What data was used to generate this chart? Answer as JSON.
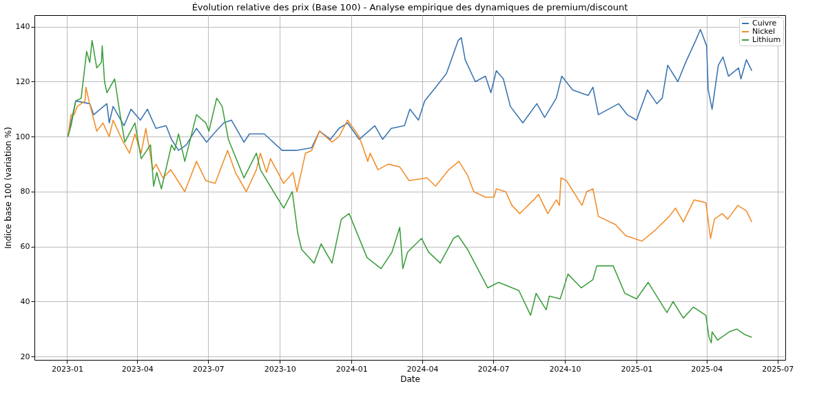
{
  "chart_data": {
    "type": "line",
    "title": "Évolution relative des prix (Base 100) - Analyse empirique des dynamiques de premium/discount",
    "xlabel": "Date",
    "ylabel": "Indice base 100 (variation %)",
    "xlim": [
      "2022-11-20",
      "2025-07-11"
    ],
    "ylim": [
      18.8,
      144.2
    ],
    "xticks": [
      {
        "value": "2023-01",
        "label": "2023-01"
      },
      {
        "value": "2023-04",
        "label": "2023-04"
      },
      {
        "value": "2023-07",
        "label": "2023-07"
      },
      {
        "value": "2023-10",
        "label": "2023-10"
      },
      {
        "value": "2024-01",
        "label": "2024-01"
      },
      {
        "value": "2024-04",
        "label": "2024-04"
      },
      {
        "value": "2024-07",
        "label": "2024-07"
      },
      {
        "value": "2024-10",
        "label": "2024-10"
      },
      {
        "value": "2025-01",
        "label": "2025-01"
      },
      {
        "value": "2025-04",
        "label": "2025-04"
      },
      {
        "value": "2025-07",
        "label": "2025-07"
      }
    ],
    "yticks": [
      20,
      40,
      60,
      80,
      100,
      120,
      140
    ],
    "grid": true,
    "legend": "top right",
    "series": [
      {
        "name": "Cuivre",
        "color": "#3a75b0",
        "x": [
          "2023-01-02",
          "2023-01-12",
          "2023-01-30",
          "2023-02-04",
          "2023-02-21",
          "2023-02-24",
          "2023-03-01",
          "2023-03-15",
          "2023-03-24",
          "2023-04-05",
          "2023-04-14",
          "2023-04-25",
          "2023-05-08",
          "2023-05-15",
          "2023-05-24",
          "2023-06-03",
          "2023-06-16",
          "2023-06-29",
          "2023-07-08",
          "2023-07-21",
          "2023-07-31",
          "2023-08-16",
          "2023-08-23",
          "2023-09-11",
          "2023-10-04",
          "2023-10-22",
          "2023-11-11",
          "2023-11-21",
          "2023-12-05",
          "2023-12-16",
          "2023-12-27",
          "2024-01-11",
          "2024-01-31",
          "2024-02-10",
          "2024-02-21",
          "2024-03-09",
          "2024-03-16",
          "2024-03-27",
          "2024-04-04",
          "2024-04-21",
          "2024-05-02",
          "2024-05-17",
          "2024-05-21",
          "2024-05-26",
          "2024-06-08",
          "2024-06-21",
          "2024-06-28",
          "2024-07-05",
          "2024-07-14",
          "2024-07-23",
          "2024-08-08",
          "2024-08-26",
          "2024-09-05",
          "2024-09-20",
          "2024-09-27",
          "2024-10-11",
          "2024-10-31",
          "2024-11-06",
          "2024-11-13",
          "2024-12-09",
          "2024-12-20",
          "2025-01-01",
          "2025-01-15",
          "2025-01-27",
          "2025-02-03",
          "2025-02-10",
          "2025-02-23",
          "2025-03-05",
          "2025-03-18",
          "2025-03-24",
          "2025-04-01",
          "2025-04-03",
          "2025-04-08",
          "2025-04-16",
          "2025-04-22",
          "2025-04-29",
          "2025-05-12",
          "2025-05-15",
          "2025-05-22",
          "2025-05-29"
        ],
        "values": [
          100,
          113,
          112,
          108,
          112,
          105,
          111,
          104,
          110,
          106,
          110,
          103,
          104,
          99,
          95,
          97,
          103,
          98,
          101,
          105,
          106,
          98,
          101,
          101,
          95,
          95,
          96,
          102,
          99,
          103,
          105,
          99,
          104,
          99,
          103,
          104,
          110,
          106,
          113,
          119,
          123,
          135,
          136,
          128,
          120,
          122,
          116,
          124,
          121,
          111,
          105,
          112,
          107,
          114,
          122,
          117,
          115,
          118,
          108,
          112,
          108,
          106,
          117,
          112,
          114,
          126,
          120,
          127,
          135,
          139,
          133,
          117,
          110,
          126,
          129,
          122,
          125,
          121,
          128,
          124
        ]
      },
      {
        "name": "Nickel",
        "color": "#f28e2b",
        "x": [
          "2023-01-02",
          "2023-01-06",
          "2023-01-10",
          "2023-01-14",
          "2023-01-24",
          "2023-01-25",
          "2023-01-29",
          "2023-02-08",
          "2023-02-16",
          "2023-02-24",
          "2023-03-01",
          "2023-03-14",
          "2023-03-22",
          "2023-03-29",
          "2023-04-06",
          "2023-04-12",
          "2023-04-21",
          "2023-04-25",
          "2023-05-04",
          "2023-05-14",
          "2023-05-23",
          "2023-06-01",
          "2023-06-16",
          "2023-06-28",
          "2023-07-10",
          "2023-07-26",
          "2023-08-05",
          "2023-08-19",
          "2023-09-01",
          "2023-09-06",
          "2023-09-14",
          "2023-09-19",
          "2023-10-06",
          "2023-10-18",
          "2023-10-23",
          "2023-11-03",
          "2023-11-11",
          "2023-11-21",
          "2023-12-07",
          "2023-12-16",
          "2023-12-27",
          "2024-01-11",
          "2024-01-22",
          "2024-01-25",
          "2024-02-04",
          "2024-02-17",
          "2024-03-03",
          "2024-03-15",
          "2024-04-07",
          "2024-04-18",
          "2024-05-05",
          "2024-05-18",
          "2024-05-29",
          "2024-06-06",
          "2024-06-21",
          "2024-07-02",
          "2024-07-05",
          "2024-07-17",
          "2024-07-25",
          "2024-08-04",
          "2024-08-22",
          "2024-08-28",
          "2024-09-09",
          "2024-09-20",
          "2024-09-24",
          "2024-09-26",
          "2024-10-03",
          "2024-10-23",
          "2024-10-29",
          "2024-11-06",
          "2024-11-13",
          "2024-12-05",
          "2024-12-18",
          "2025-01-08",
          "2025-01-25",
          "2025-02-12",
          "2025-02-20",
          "2025-03-02",
          "2025-03-16",
          "2025-03-31",
          "2025-04-06",
          "2025-04-11",
          "2025-04-21",
          "2025-04-28",
          "2025-05-11",
          "2025-05-22",
          "2025-05-29"
        ],
        "values": [
          100,
          108,
          108,
          111,
          113,
          118,
          113,
          102,
          105,
          100,
          106,
          98,
          94,
          101,
          94,
          103,
          88,
          90,
          85,
          88,
          84,
          80,
          91,
          84,
          83,
          95,
          87,
          80,
          88,
          94,
          87,
          92,
          83,
          87,
          80,
          94,
          95,
          102,
          98,
          100,
          106,
          100,
          91,
          94,
          88,
          90,
          89,
          84,
          85,
          82,
          88,
          91,
          86,
          80,
          78,
          78,
          81,
          80,
          75,
          72,
          77,
          79,
          72,
          77,
          75,
          85,
          84,
          75,
          80,
          81,
          71,
          68,
          64,
          62,
          66,
          71,
          74,
          69,
          77,
          76,
          63,
          70,
          72,
          70,
          75,
          73,
          69
        ]
      },
      {
        "name": "Lithium",
        "color": "#3f9f3f",
        "x": [
          "2023-01-02",
          "2023-01-06",
          "2023-01-12",
          "2023-01-19",
          "2023-01-26",
          "2023-01-30",
          "2023-02-02",
          "2023-02-08",
          "2023-02-14",
          "2023-02-15",
          "2023-02-18",
          "2023-02-21",
          "2023-03-03",
          "2023-03-10",
          "2023-03-16",
          "2023-03-29",
          "2023-04-06",
          "2023-04-18",
          "2023-04-22",
          "2023-04-26",
          "2023-05-02",
          "2023-05-15",
          "2023-05-19",
          "2023-05-24",
          "2023-06-01",
          "2023-06-16",
          "2023-06-28",
          "2023-07-02",
          "2023-07-12",
          "2023-07-19",
          "2023-07-27",
          "2023-08-16",
          "2023-09-01",
          "2023-09-06",
          "2023-09-23",
          "2023-10-06",
          "2023-10-17",
          "2023-10-24",
          "2023-10-29",
          "2023-11-14",
          "2023-11-23",
          "2023-12-07",
          "2023-12-19",
          "2023-12-29",
          "2024-01-21",
          "2024-02-08",
          "2024-02-22",
          "2024-03-03",
          "2024-03-07",
          "2024-03-13",
          "2024-03-31",
          "2024-04-09",
          "2024-04-24",
          "2024-05-11",
          "2024-05-17",
          "2024-05-29",
          "2024-06-24",
          "2024-07-08",
          "2024-08-03",
          "2024-08-18",
          "2024-08-25",
          "2024-09-07",
          "2024-09-11",
          "2024-09-25",
          "2024-10-05",
          "2024-10-22",
          "2024-11-06",
          "2024-11-11",
          "2024-12-02",
          "2024-12-17",
          "2025-01-01",
          "2025-01-16",
          "2025-02-09",
          "2025-02-17",
          "2025-03-02",
          "2025-03-15",
          "2025-03-31",
          "2025-04-04",
          "2025-04-07",
          "2025-04-08",
          "2025-04-15",
          "2025-04-30",
          "2025-05-10",
          "2025-05-20",
          "2025-05-29"
        ],
        "values": [
          100,
          104,
          113,
          114,
          131,
          127,
          135,
          125,
          127,
          133,
          120,
          116,
          121,
          108,
          98,
          105,
          92,
          97,
          82,
          87,
          81,
          97,
          95,
          101,
          91,
          108,
          105,
          102,
          114,
          111,
          99,
          85,
          94,
          88,
          80,
          74,
          80,
          65,
          59,
          54,
          61,
          54,
          70,
          72,
          56,
          52,
          58,
          67,
          52,
          58,
          63,
          58,
          54,
          63,
          64,
          59,
          45,
          47,
          44,
          35,
          43,
          37,
          42,
          41,
          50,
          45,
          48,
          53,
          53,
          43,
          41,
          47,
          36,
          40,
          34,
          38,
          35,
          27,
          25,
          29,
          26,
          29,
          30,
          28,
          27
        ]
      }
    ]
  }
}
